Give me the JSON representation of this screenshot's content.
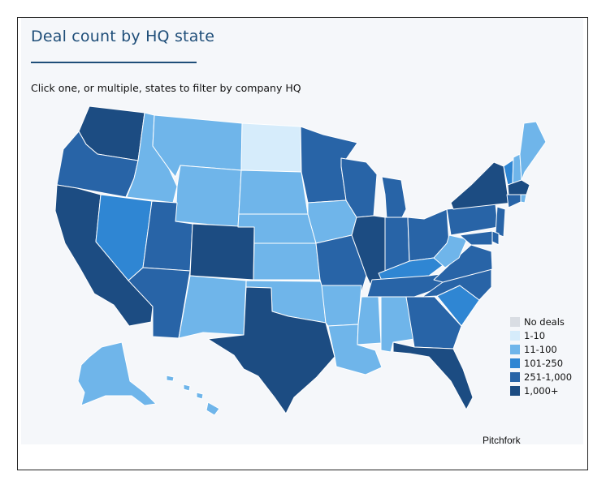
{
  "header": {
    "title": "Deal count by HQ state",
    "instruction": "Click one, or multiple, states to filter by company HQ"
  },
  "legend": {
    "items": [
      {
        "label": "No deals",
        "color": "#d9dde3"
      },
      {
        "label": "1-10",
        "color": "#d6ecfb"
      },
      {
        "label": "11-100",
        "color": "#6fb5ea"
      },
      {
        "label": "101-250",
        "color": "#2f86d3"
      },
      {
        "label": "251-1,000",
        "color": "#2864a7"
      },
      {
        "label": "1,000+",
        "color": "#1c4c82"
      }
    ]
  },
  "map": {
    "states": [
      {
        "id": "WA",
        "bin": 5
      },
      {
        "id": "OR",
        "bin": 4
      },
      {
        "id": "CA",
        "bin": 5
      },
      {
        "id": "ID",
        "bin": 2
      },
      {
        "id": "NV",
        "bin": 3
      },
      {
        "id": "MT",
        "bin": 2
      },
      {
        "id": "WY",
        "bin": 2
      },
      {
        "id": "UT",
        "bin": 4
      },
      {
        "id": "AZ",
        "bin": 4
      },
      {
        "id": "CO",
        "bin": 5
      },
      {
        "id": "NM",
        "bin": 2
      },
      {
        "id": "ND",
        "bin": 1
      },
      {
        "id": "SD",
        "bin": 2
      },
      {
        "id": "NE",
        "bin": 2
      },
      {
        "id": "KS",
        "bin": 2
      },
      {
        "id": "OK",
        "bin": 2
      },
      {
        "id": "TX",
        "bin": 5
      },
      {
        "id": "MN",
        "bin": 4
      },
      {
        "id": "IA",
        "bin": 2
      },
      {
        "id": "MO",
        "bin": 4
      },
      {
        "id": "AR",
        "bin": 2
      },
      {
        "id": "LA",
        "bin": 2
      },
      {
        "id": "WI",
        "bin": 4
      },
      {
        "id": "IL",
        "bin": 5
      },
      {
        "id": "MI",
        "bin": 4
      },
      {
        "id": "IN",
        "bin": 4
      },
      {
        "id": "OH",
        "bin": 4
      },
      {
        "id": "KY",
        "bin": 3
      },
      {
        "id": "TN",
        "bin": 4
      },
      {
        "id": "MS",
        "bin": 2
      },
      {
        "id": "AL",
        "bin": 2
      },
      {
        "id": "GA",
        "bin": 4
      },
      {
        "id": "FL",
        "bin": 5
      },
      {
        "id": "SC",
        "bin": 3
      },
      {
        "id": "NC",
        "bin": 4
      },
      {
        "id": "VA",
        "bin": 4
      },
      {
        "id": "WV",
        "bin": 2
      },
      {
        "id": "PA",
        "bin": 4
      },
      {
        "id": "NY",
        "bin": 5
      },
      {
        "id": "VT",
        "bin": 3
      },
      {
        "id": "NH",
        "bin": 2
      },
      {
        "id": "ME",
        "bin": 2
      },
      {
        "id": "MA",
        "bin": 5
      },
      {
        "id": "RI",
        "bin": 2
      },
      {
        "id": "CT",
        "bin": 4
      },
      {
        "id": "NJ",
        "bin": 4
      },
      {
        "id": "DE",
        "bin": 4
      },
      {
        "id": "MD",
        "bin": 4
      },
      {
        "id": "AK",
        "bin": 2
      },
      {
        "id": "HI",
        "bin": 2
      }
    ]
  },
  "source": "Pitchfork"
}
